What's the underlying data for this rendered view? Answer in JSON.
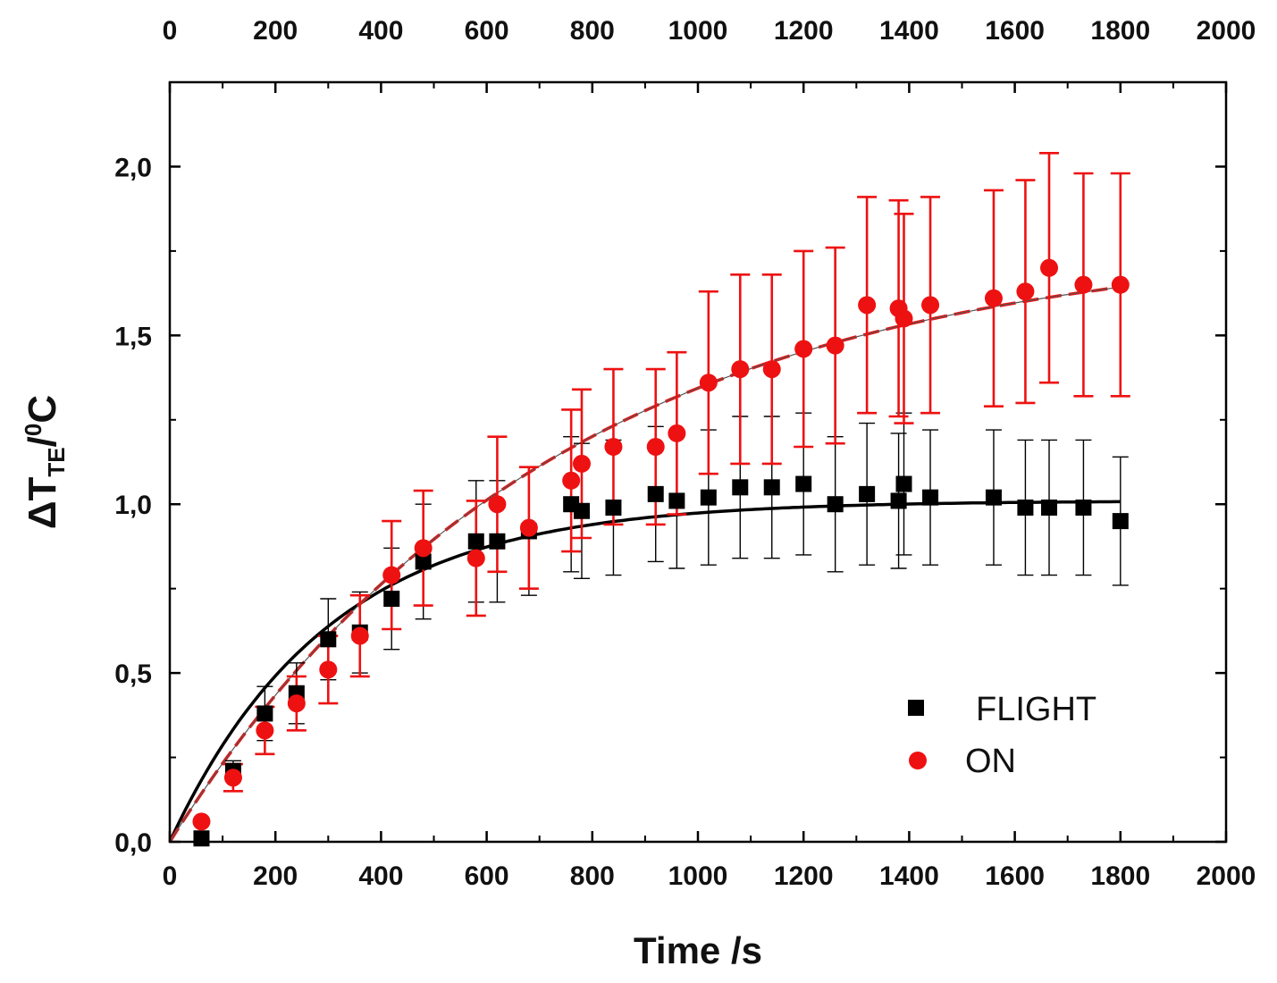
{
  "chart_data": {
    "type": "scatter",
    "title": "",
    "xlabel": "Time /s",
    "ylabel": {
      "main": "ΔT",
      "subscript": "TE",
      "slash": "/",
      "superscript": "0",
      "unit": "C"
    },
    "xlim": [
      0,
      2000
    ],
    "ylim": [
      0,
      2.25
    ],
    "x_ticks": [
      0,
      200,
      400,
      600,
      800,
      1000,
      1200,
      1400,
      1600,
      1800,
      2000
    ],
    "x_tick_labels": [
      "0",
      "200",
      "400",
      "600",
      "800",
      "1000",
      "1200",
      "1400",
      "1600",
      "1800",
      "2000"
    ],
    "top_tick_labels": [
      "0",
      "200",
      "400",
      "600",
      "800",
      "1000",
      "1200",
      "1400",
      "1600",
      "1800",
      "2000"
    ],
    "y_ticks": [
      0,
      0.5,
      1.0,
      1.5,
      2.0
    ],
    "y_tick_labels": [
      "0,0",
      "0,5",
      "1,0",
      "1,5",
      "2,0"
    ],
    "legend_position": "lower-right",
    "series": [
      {
        "name": "FLIGHT",
        "marker": "square",
        "color": "#000000",
        "x": [
          60,
          120,
          180,
          240,
          300,
          360,
          420,
          480,
          580,
          620,
          680,
          760,
          780,
          840,
          920,
          960,
          1020,
          1080,
          1140,
          1200,
          1260,
          1320,
          1380,
          1390,
          1440,
          1560,
          1620,
          1665,
          1730,
          1800
        ],
        "y": [
          0.01,
          0.21,
          0.38,
          0.44,
          0.6,
          0.62,
          0.72,
          0.83,
          0.89,
          0.89,
          0.92,
          1.0,
          0.98,
          0.99,
          1.03,
          1.01,
          1.02,
          1.05,
          1.05,
          1.06,
          1.0,
          1.03,
          1.01,
          1.06,
          1.02,
          1.02,
          0.99,
          0.99,
          0.99,
          0.95
        ],
        "err": [
          0.0,
          0.03,
          0.08,
          0.09,
          0.12,
          0.12,
          0.15,
          0.17,
          0.18,
          0.18,
          0.19,
          0.2,
          0.2,
          0.2,
          0.2,
          0.2,
          0.2,
          0.21,
          0.21,
          0.21,
          0.2,
          0.21,
          0.2,
          0.21,
          0.2,
          0.2,
          0.2,
          0.2,
          0.2,
          0.19
        ],
        "fit": {
          "style": "solid",
          "width": 3.5,
          "color": "#000000",
          "a": 1.01,
          "tau": 300
        }
      },
      {
        "name": "ON",
        "marker": "circle",
        "color": "#ee1111",
        "x": [
          60,
          120,
          180,
          240,
          300,
          360,
          420,
          480,
          580,
          620,
          680,
          760,
          780,
          840,
          920,
          960,
          1020,
          1080,
          1140,
          1200,
          1260,
          1320,
          1380,
          1390,
          1440,
          1560,
          1620,
          1665,
          1730,
          1800
        ],
        "y": [
          0.06,
          0.19,
          0.33,
          0.41,
          0.51,
          0.61,
          0.79,
          0.87,
          0.84,
          1.0,
          0.93,
          1.07,
          1.12,
          1.17,
          1.17,
          1.21,
          1.36,
          1.4,
          1.4,
          1.46,
          1.47,
          1.59,
          1.58,
          1.55,
          1.59,
          1.61,
          1.63,
          1.7,
          1.65,
          1.65
        ],
        "err": [
          0.0,
          0.04,
          0.07,
          0.08,
          0.1,
          0.12,
          0.16,
          0.17,
          0.17,
          0.2,
          0.18,
          0.21,
          0.22,
          0.23,
          0.23,
          0.24,
          0.27,
          0.28,
          0.28,
          0.29,
          0.29,
          0.32,
          0.32,
          0.31,
          0.32,
          0.32,
          0.33,
          0.34,
          0.33,
          0.33
        ],
        "fit": {
          "style": "dashed",
          "width": 3.5,
          "color": "#ee1111",
          "a": 1.79,
          "tau": 720
        },
        "fit_overlay": {
          "style": "solid",
          "width": 1.2,
          "color": "#555555"
        }
      }
    ]
  }
}
